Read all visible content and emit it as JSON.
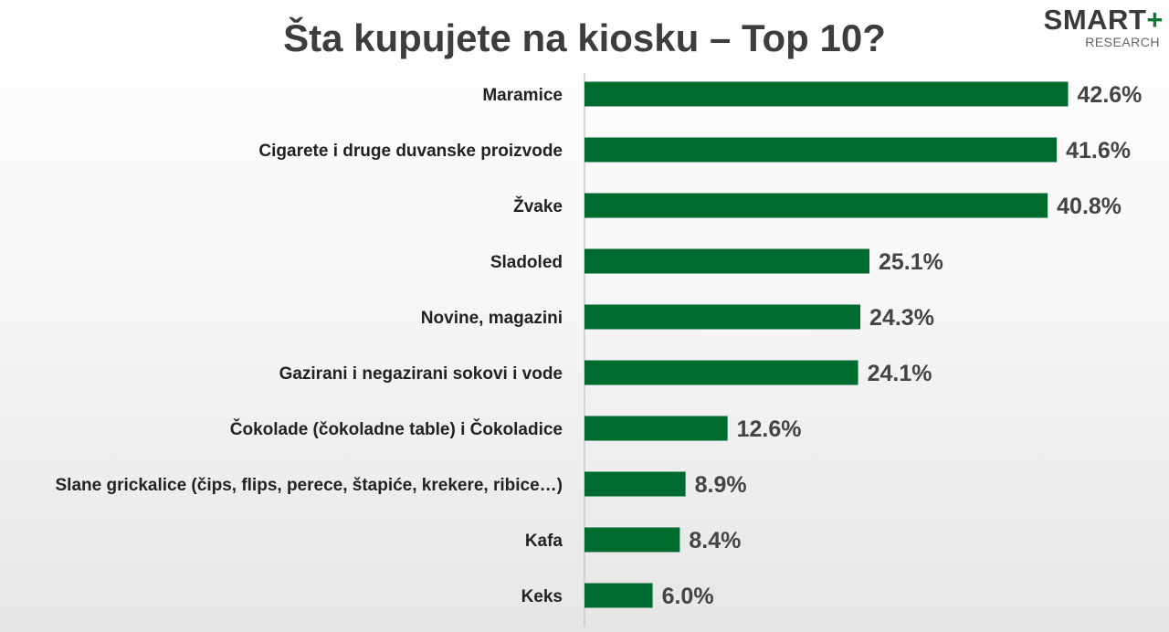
{
  "chart_data": {
    "type": "bar",
    "orientation": "horizontal",
    "title": "Šta kupujete na kiosku – Top 10?",
    "categories": [
      "Maramice",
      "Cigarete i druge duvanske proizvode",
      "Žvake",
      "Sladoled",
      "Novine, magazini",
      "Gazirani i negazirani sokovi i vode",
      "Čokolade (čokoladne table) i Čokoladice",
      "Slane grickalice (čips, flips, perece, štapiće, krekere, ribice…)",
      "Kafa",
      "Keks"
    ],
    "values": [
      42.6,
      41.6,
      40.8,
      25.1,
      24.3,
      24.1,
      12.6,
      8.9,
      8.4,
      6.0
    ],
    "value_labels": [
      "42.6%",
      "41.6%",
      "40.8%",
      "25.1%",
      "24.3%",
      "24.1%",
      "12.6%",
      "8.9%",
      "8.4%",
      "6.0%"
    ],
    "xlim": [
      0,
      50
    ],
    "bar_color": "#006b2e",
    "grid": false,
    "legend": "none"
  },
  "logo": {
    "main": "SMART",
    "plus": "+",
    "sub": "RESEARCH",
    "accent_color": "#0d7a3a"
  }
}
